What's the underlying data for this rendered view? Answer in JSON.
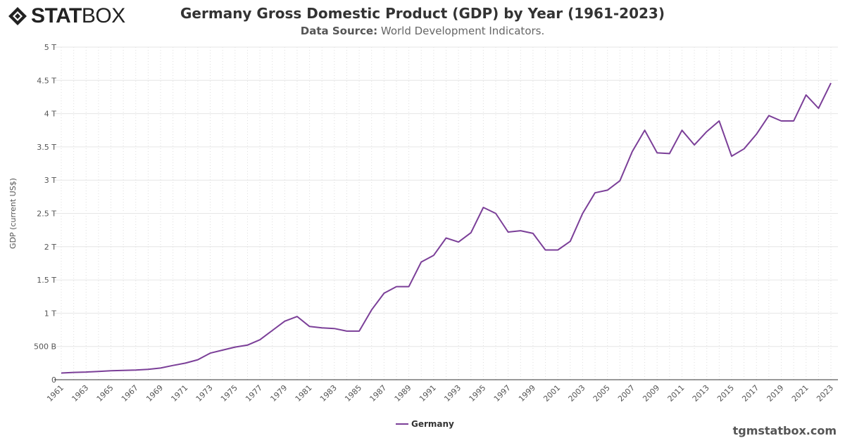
{
  "brand": {
    "logo_text_bold": "STAT",
    "logo_text_light": "BOX"
  },
  "header": {
    "title": "Germany Gross Domestic Product (GDP) by Year (1961-2023)",
    "subtitle_label": "Data Source:",
    "subtitle_value": "World Development Indicators."
  },
  "footer": {
    "site": "tgmstatbox.com"
  },
  "chart_data": {
    "type": "line",
    "title": "Germany Gross Domestic Product (GDP) by Year (1961-2023)",
    "xlabel": "",
    "ylabel": "GDP (current US$)",
    "ylim": [
      0,
      5000000000000.0
    ],
    "y_ticks": [
      {
        "v": 0,
        "label": "0"
      },
      {
        "v": 500000000000.0,
        "label": "500 B"
      },
      {
        "v": 1000000000000.0,
        "label": "1 T"
      },
      {
        "v": 1500000000000.0,
        "label": "1.5 T"
      },
      {
        "v": 2000000000000.0,
        "label": "2 T"
      },
      {
        "v": 2500000000000.0,
        "label": "2.5 T"
      },
      {
        "v": 3000000000000.0,
        "label": "3 T"
      },
      {
        "v": 3500000000000.0,
        "label": "3.5 T"
      },
      {
        "v": 4000000000000.0,
        "label": "4 T"
      },
      {
        "v": 4500000000000.0,
        "label": "4.5 T"
      },
      {
        "v": 5000000000000.0,
        "label": "5 T"
      }
    ],
    "x": [
      1961,
      1962,
      1963,
      1964,
      1965,
      1966,
      1967,
      1968,
      1969,
      1970,
      1971,
      1972,
      1973,
      1974,
      1975,
      1976,
      1977,
      1978,
      1979,
      1980,
      1981,
      1982,
      1983,
      1984,
      1985,
      1986,
      1987,
      1988,
      1989,
      1990,
      1991,
      1992,
      1993,
      1994,
      1995,
      1996,
      1997,
      1998,
      1999,
      2000,
      2001,
      2002,
      2003,
      2004,
      2005,
      2006,
      2007,
      2008,
      2009,
      2010,
      2011,
      2012,
      2013,
      2014,
      2015,
      2016,
      2017,
      2018,
      2019,
      2020,
      2021,
      2022,
      2023
    ],
    "series": [
      {
        "name": "Germany",
        "color": "#7b3f98",
        "values": [
          100000000000.0,
          110000000000.0,
          115000000000.0,
          125000000000.0,
          135000000000.0,
          140000000000.0,
          145000000000.0,
          155000000000.0,
          175000000000.0,
          215000000000.0,
          250000000000.0,
          300000000000.0,
          400000000000.0,
          445000000000.0,
          490000000000.0,
          520000000000.0,
          600000000000.0,
          740000000000.0,
          880000000000.0,
          950000000000.0,
          800000000000.0,
          780000000000.0,
          770000000000.0,
          730000000000.0,
          730000000000.0,
          1050000000000.0,
          1300000000000.0,
          1400000000000.0,
          1400000000000.0,
          1770000000000.0,
          1870000000000.0,
          2130000000000.0,
          2070000000000.0,
          2210000000000.0,
          2590000000000.0,
          2500000000000.0,
          2220000000000.0,
          2240000000000.0,
          2200000000000.0,
          1950000000000.0,
          1950000000000.0,
          2080000000000.0,
          2500000000000.0,
          2810000000000.0,
          2850000000000.0,
          2990000000000.0,
          3430000000000.0,
          3750000000000.0,
          3410000000000.0,
          3400000000000.0,
          3750000000000.0,
          3530000000000.0,
          3730000000000.0,
          3890000000000.0,
          3360000000000.0,
          3470000000000.0,
          3690000000000.0,
          3970000000000.0,
          3890000000000.0,
          3890000000000.0,
          4280000000000.0,
          4080000000000.0,
          4460000000000.0
        ]
      }
    ],
    "grid": true,
    "legend": "bottom-center"
  }
}
